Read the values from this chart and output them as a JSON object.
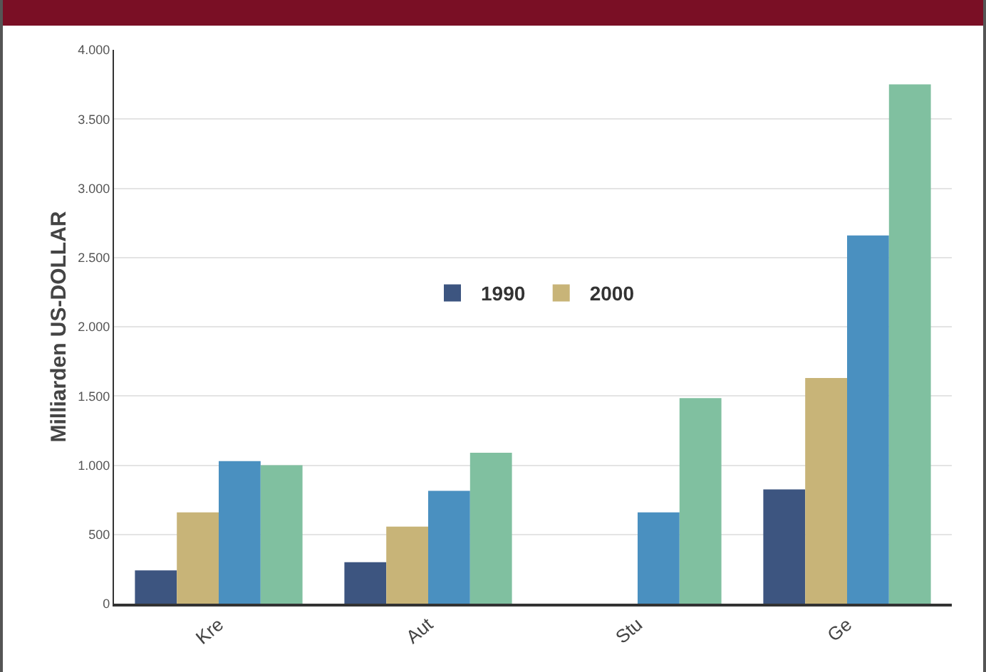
{
  "chart_data": {
    "type": "bar",
    "ylabel": "Milliarden US-DOLLAR",
    "categories": [
      "Kre",
      "Aut",
      "Stu",
      "Ge"
    ],
    "series": [
      {
        "name": "1990",
        "color": "#3d5580",
        "values": [
          240,
          300,
          null,
          825
        ]
      },
      {
        "name": "2000",
        "color": "#c8b478",
        "values": [
          660,
          557,
          null,
          1630
        ]
      },
      {
        "color": "#4a90c0",
        "values": [
          1030,
          815,
          660,
          2660
        ]
      },
      {
        "color": "#80c0a0",
        "values": [
          1000,
          1090,
          1485,
          3750
        ]
      }
    ],
    "ylim": [
      0,
      4000
    ],
    "yticks": [
      0,
      500,
      {
        "value": 1000,
        "label": "1.000"
      },
      {
        "value": 1500,
        "label": "1.500"
      },
      {
        "value": 2000,
        "label": "2.000"
      },
      {
        "value": 2500,
        "label": "2.500"
      },
      {
        "value": 3000,
        "label": "3.000"
      },
      {
        "value": 3500,
        "label": "3.500"
      },
      {
        "value": 4000,
        "label": "4.000"
      }
    ],
    "grid": "y",
    "legend": "center"
  }
}
